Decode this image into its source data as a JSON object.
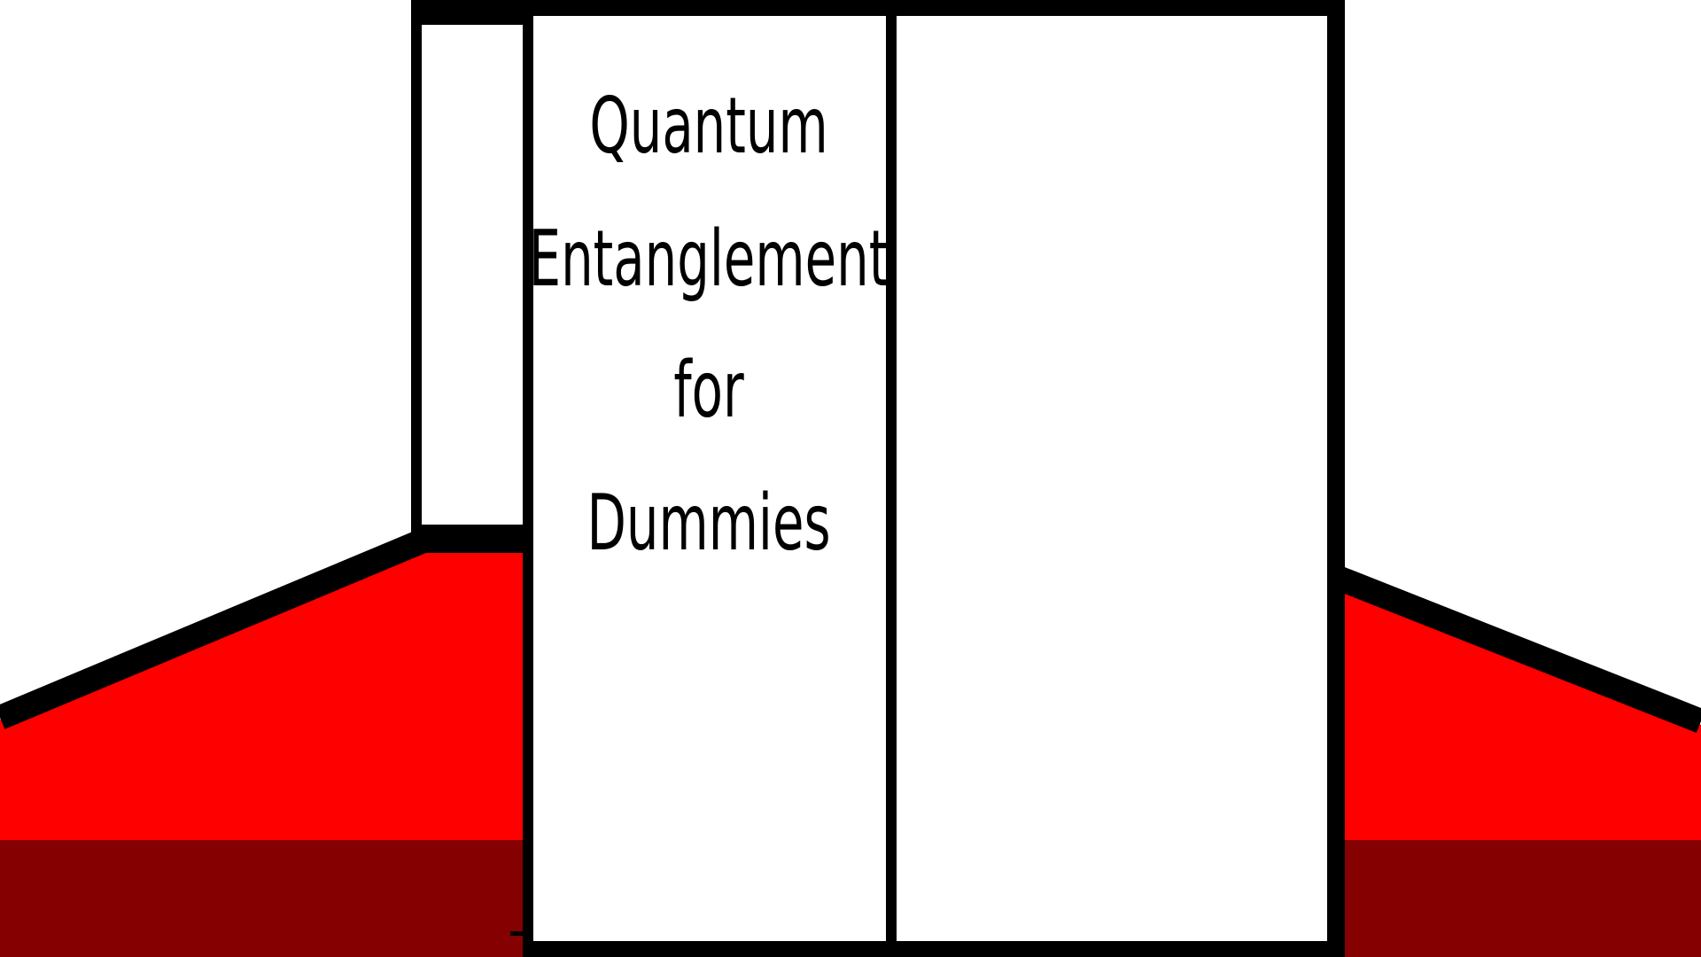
{
  "scene": {
    "book": {
      "title_lines": [
        "Quantum",
        "Entanglement",
        "for",
        "Dummies"
      ]
    },
    "colors": {
      "background": "#ffffff",
      "outline": "#000000",
      "cushion_top": "#ff0000",
      "cushion_bottom": "#850000",
      "page": "#ffffff"
    }
  }
}
